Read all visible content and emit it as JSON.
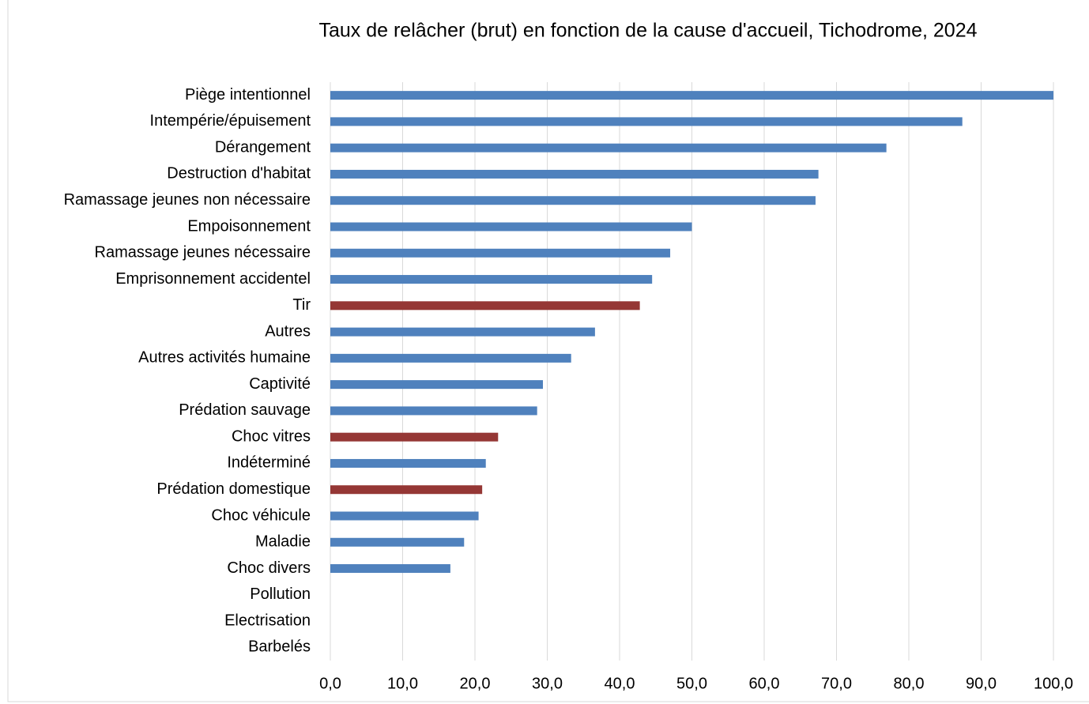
{
  "chart_data": {
    "type": "barh",
    "title": "Taux de relâcher (brut) en fonction de la cause d'accueil, Tichodrome, 2024",
    "categories": [
      "Piège intentionnel",
      "Intempérie/épuisement",
      "Dérangement",
      "Destruction d'habitat",
      "Ramassage jeunes non nécessaire",
      "Empoisonnement",
      "Ramassage jeunes nécessaire",
      "Emprisonnement accidentel",
      "Tir",
      "Autres",
      "Autres activités humaine",
      "Captivité",
      "Prédation sauvage",
      "Choc vitres",
      "Indéterminé",
      "Prédation domestique",
      "Choc véhicule",
      "Maladie",
      "Choc divers",
      "Pollution",
      "Electrisation",
      "Barbelés"
    ],
    "values": [
      100,
      87.4,
      76.9,
      67.5,
      67.1,
      50,
      47.0,
      44.5,
      42.8,
      36.6,
      33.3,
      29.4,
      28.6,
      23.2,
      21.5,
      21.0,
      20.5,
      18.5,
      16.6,
      0,
      0,
      0
    ],
    "colors": [
      "#4f81bd",
      "#4f81bd",
      "#4f81bd",
      "#4f81bd",
      "#4f81bd",
      "#4f81bd",
      "#4f81bd",
      "#4f81bd",
      "#953735",
      "#4f81bd",
      "#4f81bd",
      "#4f81bd",
      "#4f81bd",
      "#953735",
      "#4f81bd",
      "#953735",
      "#4f81bd",
      "#4f81bd",
      "#4f81bd",
      "#4f81bd",
      "#4f81bd",
      "#4f81bd"
    ],
    "xlim": [
      0,
      100
    ],
    "xticks": [
      {
        "value": 0,
        "label": "0,0"
      },
      {
        "value": 10,
        "label": "10,0"
      },
      {
        "value": 20,
        "label": "20,0"
      },
      {
        "value": 30,
        "label": "30,0"
      },
      {
        "value": 40,
        "label": "40,0"
      },
      {
        "value": 50,
        "label": "50,0"
      },
      {
        "value": 60,
        "label": "60,0"
      },
      {
        "value": 70,
        "label": "70,0"
      },
      {
        "value": 80,
        "label": "80,0"
      },
      {
        "value": 90,
        "label": "90,0"
      },
      {
        "value": 100,
        "label": "100,0"
      }
    ],
    "grid": true
  }
}
